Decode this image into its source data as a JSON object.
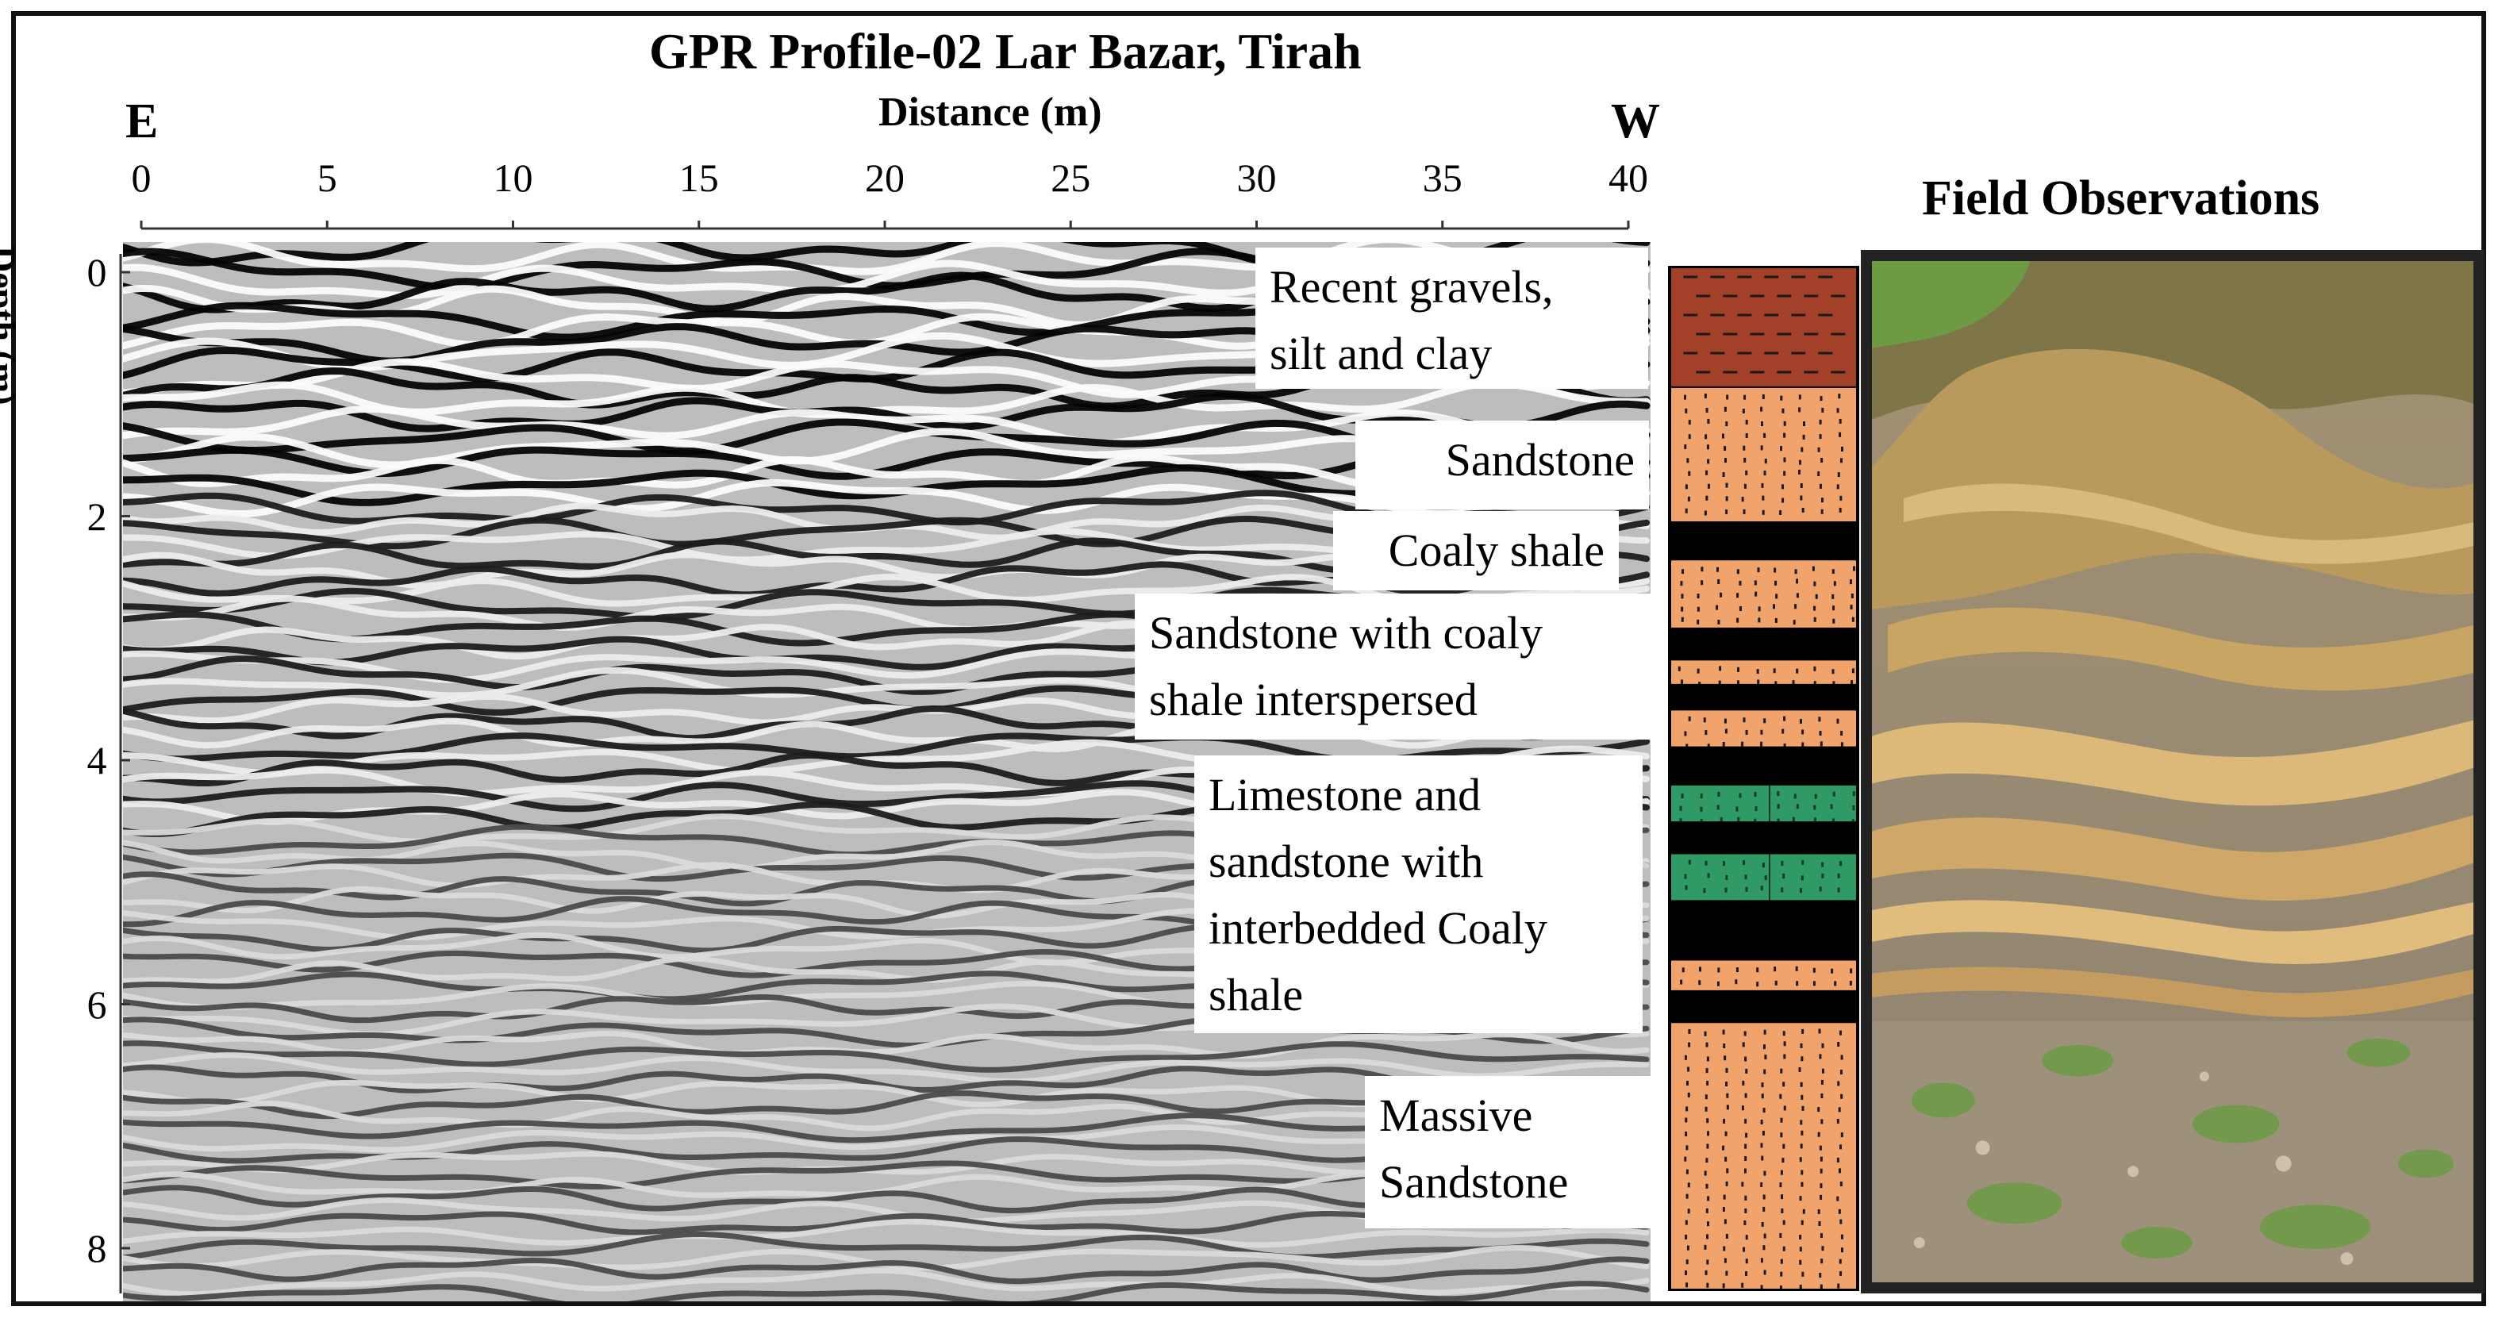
{
  "title": "GPR Profile-02 Lar Bazar, Tirah",
  "x_axis": {
    "label": "Distance (m)",
    "left_direction": "E",
    "right_direction": "W",
    "ticks": [
      "0",
      "5",
      "10",
      "15",
      "20",
      "25",
      "30",
      "35",
      "40"
    ],
    "range": [
      0,
      40
    ]
  },
  "y_axis": {
    "label": "Depth (m)",
    "ticks": [
      "0",
      "2",
      "4",
      "6",
      "8"
    ],
    "range": [
      0,
      8.2
    ]
  },
  "layer_labels": [
    {
      "lines": [
        "Recent gravels,",
        "silt and clay"
      ]
    },
    {
      "lines": [
        "Sandstone"
      ]
    },
    {
      "lines": [
        "Coaly shale"
      ]
    },
    {
      "lines": [
        "Sandstone with coaly",
        "shale interspersed"
      ]
    },
    {
      "lines": [
        "Limestone and",
        "sandstone with",
        "interbedded Coaly",
        "shale"
      ]
    },
    {
      "lines": [
        "Massive",
        "Sandstone"
      ]
    }
  ],
  "stratigraphic_column": {
    "depth_range_m": [
      0,
      8.2
    ],
    "layers": [
      {
        "type": "silt-clay",
        "top_m": 0.0,
        "bottom_m": 0.97
      },
      {
        "type": "sandstone",
        "top_m": 0.97,
        "bottom_m": 2.05
      },
      {
        "type": "coaly-shale",
        "top_m": 2.05,
        "bottom_m": 2.35
      },
      {
        "type": "sandstone",
        "top_m": 2.35,
        "bottom_m": 2.9
      },
      {
        "type": "coaly-shale",
        "top_m": 2.9,
        "bottom_m": 3.15
      },
      {
        "type": "sandstone",
        "top_m": 3.15,
        "bottom_m": 3.35
      },
      {
        "type": "coaly-shale",
        "top_m": 3.35,
        "bottom_m": 3.55
      },
      {
        "type": "sandstone",
        "top_m": 3.55,
        "bottom_m": 3.85
      },
      {
        "type": "coaly-shale",
        "top_m": 3.85,
        "bottom_m": 4.15
      },
      {
        "type": "limestone",
        "top_m": 4.15,
        "bottom_m": 4.45
      },
      {
        "type": "coaly-shale",
        "top_m": 4.45,
        "bottom_m": 4.7
      },
      {
        "type": "limestone",
        "top_m": 4.7,
        "bottom_m": 5.08
      },
      {
        "type": "coaly-shale",
        "top_m": 5.08,
        "bottom_m": 5.55
      },
      {
        "type": "sandstone",
        "top_m": 5.55,
        "bottom_m": 5.8
      },
      {
        "type": "coaly-shale",
        "top_m": 5.8,
        "bottom_m": 6.05
      },
      {
        "type": "sandstone",
        "top_m": 6.05,
        "bottom_m": 8.2
      }
    ]
  },
  "field_observations": {
    "title": "Field Observations"
  },
  "colors": {
    "silt_clay": "#a3402a",
    "sandstone": "#f0a46c",
    "coaly_shale": "#000000",
    "limestone": "#2f9a66",
    "frame": "#111111"
  }
}
